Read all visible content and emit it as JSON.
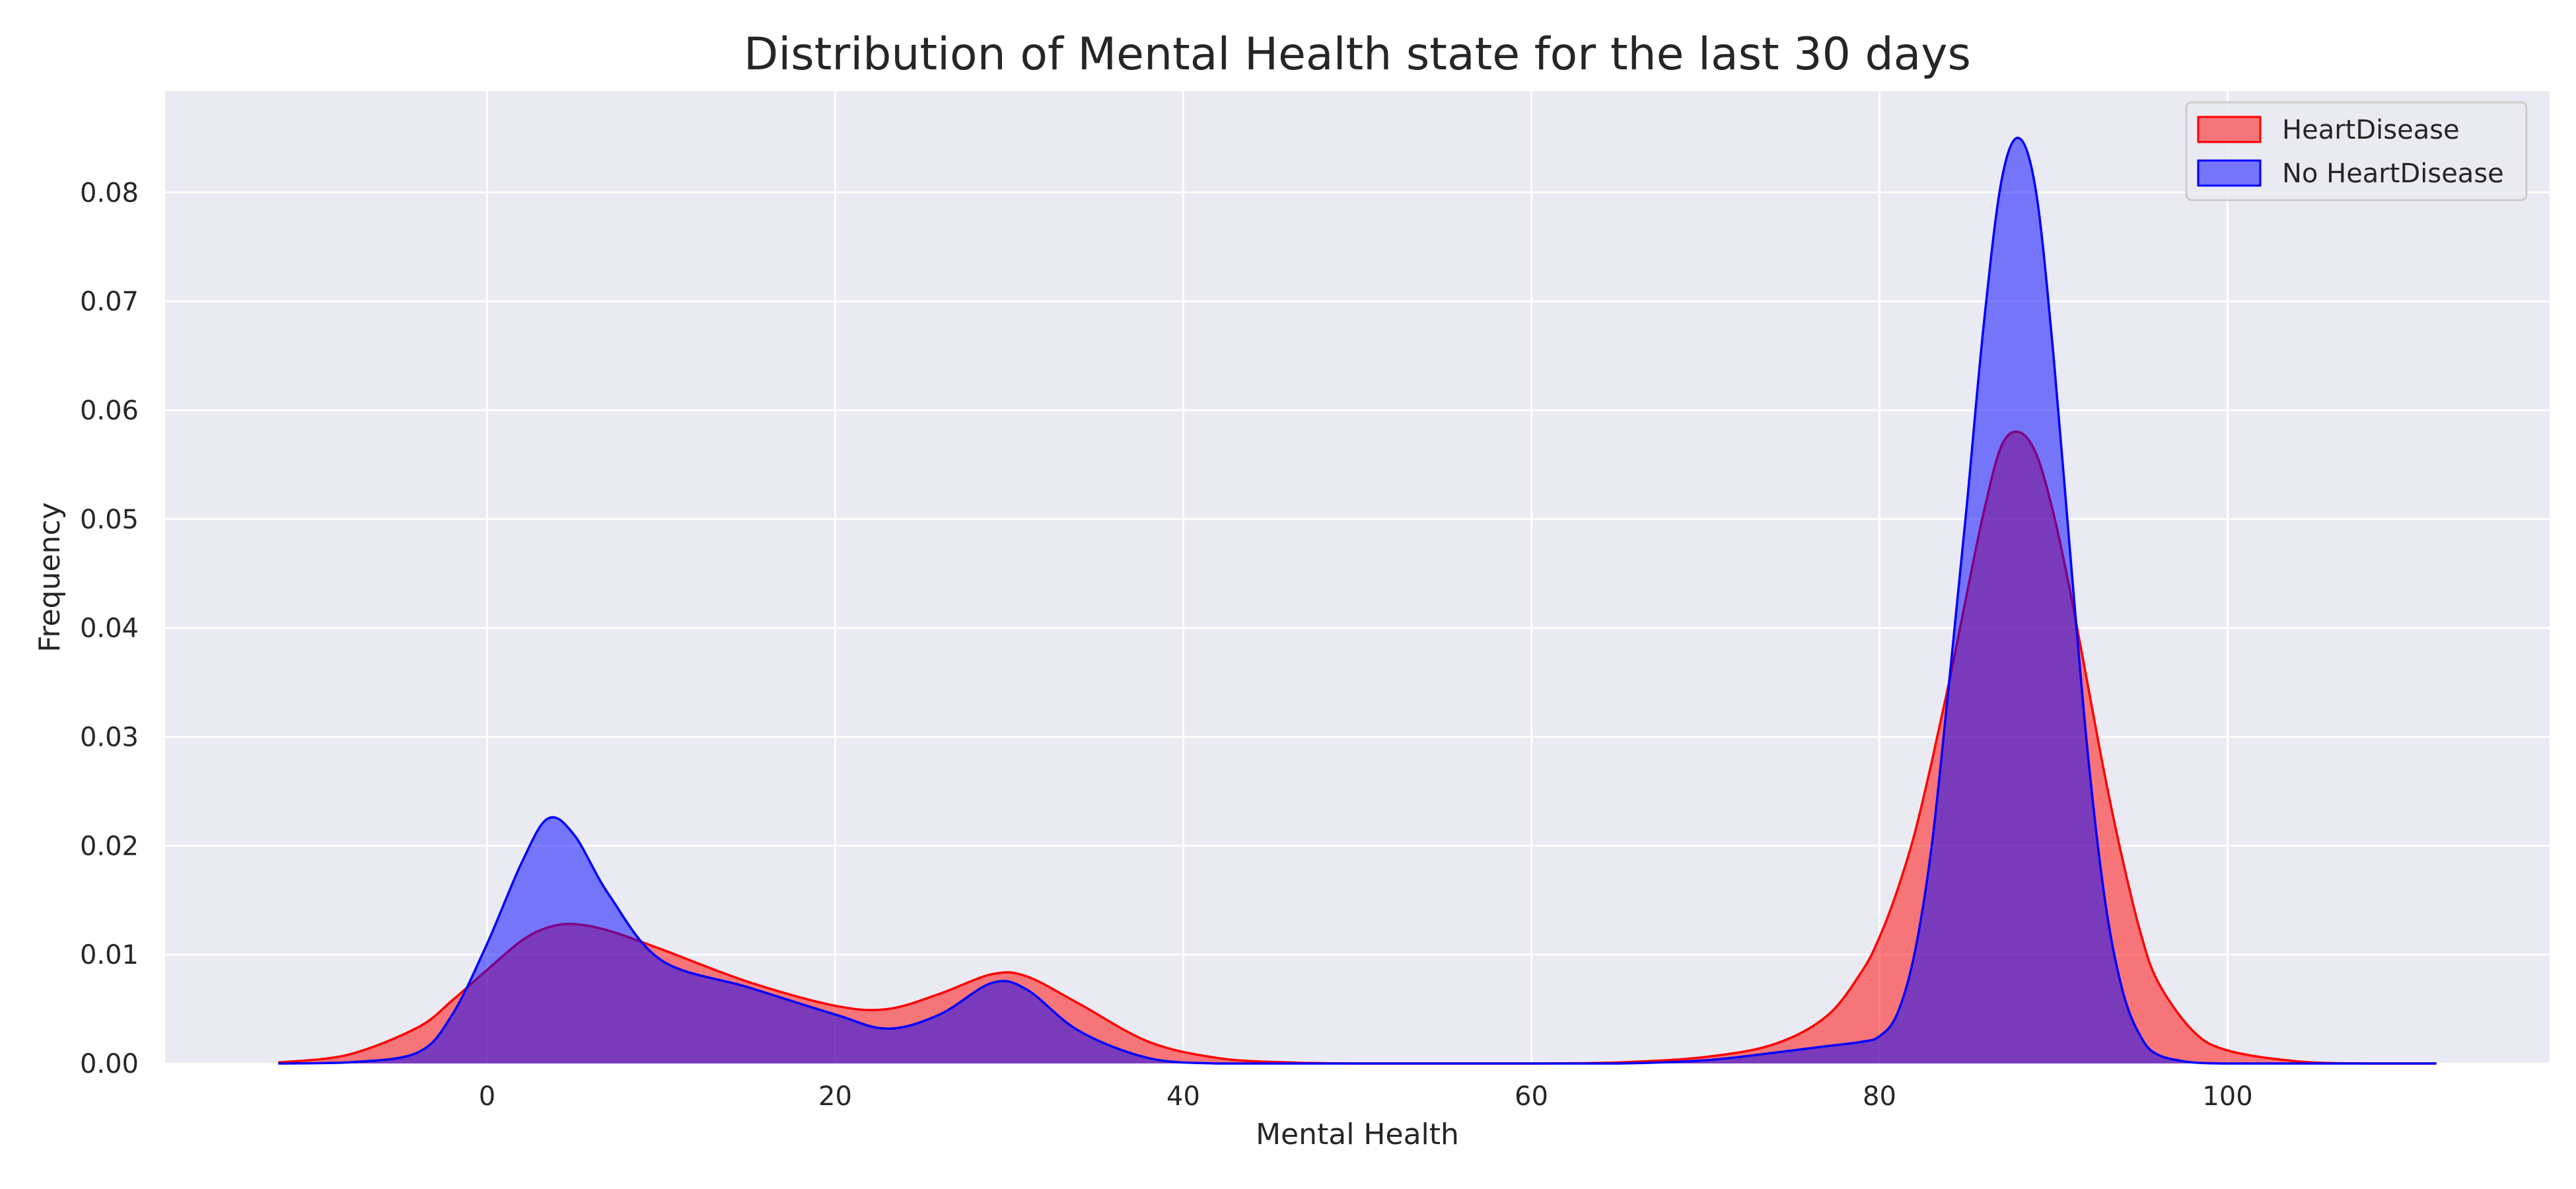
{
  "chart_data": {
    "type": "area",
    "title": "Distribution of Mental Health state for the last 30 days",
    "xlabel": "Mental Health",
    "ylabel": "Frequency",
    "xlim": [
      -18.5,
      118.5
    ],
    "ylim": [
      0,
      0.0893
    ],
    "grid": true,
    "legend_position": "top-right",
    "x_ticks": [
      0,
      20,
      40,
      60,
      80,
      100
    ],
    "x_tick_labels": [
      "0",
      "20",
      "40",
      "60",
      "80",
      "100"
    ],
    "y_ticks": [
      0,
      0.01,
      0.02,
      0.03,
      0.04,
      0.05,
      0.06,
      0.07,
      0.08
    ],
    "y_tick_labels": [
      "0.00",
      "0.01",
      "0.02",
      "0.03",
      "0.04",
      "0.05",
      "0.06",
      "0.07",
      "0.08"
    ],
    "x": [
      -12,
      -8,
      -4,
      -2,
      0,
      2,
      3.5,
      5,
      7,
      10,
      15,
      20,
      23,
      26,
      29,
      31,
      34,
      38,
      42,
      46,
      50,
      55,
      60,
      65,
      70,
      74,
      77,
      79,
      80,
      81,
      82,
      83,
      84,
      85,
      86,
      87,
      88,
      89,
      90,
      91,
      92,
      93,
      94,
      95,
      96,
      98,
      100,
      104,
      108,
      112
    ],
    "series": [
      {
        "name": "HeartDisease",
        "color": "#ff0000",
        "fill": "#f77272",
        "values": [
          0.0001,
          0.0008,
          0.0033,
          0.0058,
          0.0086,
          0.0113,
          0.0125,
          0.0128,
          0.0122,
          0.0105,
          0.0075,
          0.0053,
          0.005,
          0.0064,
          0.0082,
          0.008,
          0.0055,
          0.002,
          0.0005,
          0.0001,
          0,
          0,
          0,
          0.0001,
          0.0006,
          0.0018,
          0.0044,
          0.0085,
          0.0116,
          0.0158,
          0.021,
          0.0277,
          0.035,
          0.043,
          0.0507,
          0.0567,
          0.058,
          0.056,
          0.0505,
          0.043,
          0.0345,
          0.026,
          0.0185,
          0.012,
          0.0075,
          0.003,
          0.0012,
          0.0002,
          0,
          0
        ]
      },
      {
        "name": "No HeartDisease",
        "color": "#0000ff",
        "fill": "#7474f7",
        "values": [
          0,
          0.0001,
          0.001,
          0.0045,
          0.011,
          0.0185,
          0.0225,
          0.021,
          0.0155,
          0.0095,
          0.007,
          0.0045,
          0.0032,
          0.0045,
          0.0074,
          0.0068,
          0.003,
          0.0005,
          0,
          0,
          0,
          0,
          0,
          0,
          0.0003,
          0.001,
          0.0016,
          0.002,
          0.0025,
          0.0045,
          0.01,
          0.02,
          0.035,
          0.051,
          0.068,
          0.081,
          0.085,
          0.08,
          0.065,
          0.046,
          0.028,
          0.0145,
          0.0065,
          0.0025,
          0.0008,
          0.0001,
          0,
          0,
          0,
          0
        ]
      }
    ]
  }
}
